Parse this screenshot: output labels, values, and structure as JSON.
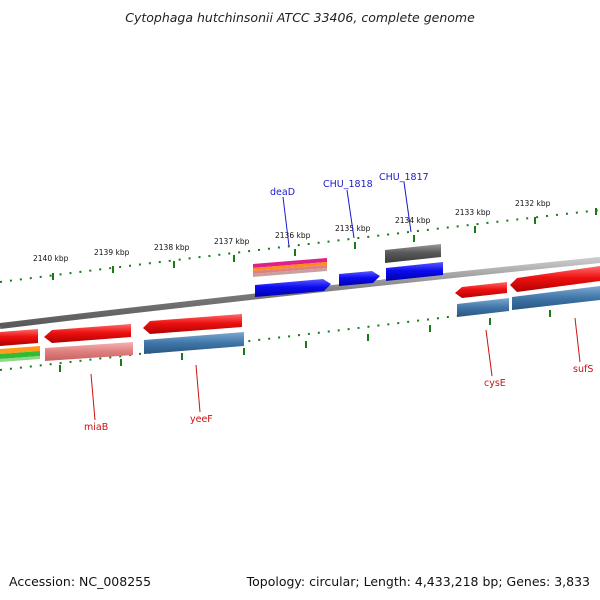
{
  "title": "Cytophaga hutchinsonii ATCC 33406, complete genome",
  "footer": {
    "accession": "Accession: NC_008255",
    "summary": "Topology: circular; Length: 4,433,218 bp; Genes: 3,833"
  },
  "colors": {
    "backbone": "#8a8a8a",
    "tick": "#1a7a1a",
    "forward_label": "#1a1acc",
    "reverse_label": "#cc1111",
    "gene_red": "#e81010",
    "gene_blue": "#1010ee",
    "gene_gray": "#666666",
    "gene_steel": "#3f76a8",
    "gene_salmon": "#e88b8b"
  },
  "scale": {
    "unit": "kbp",
    "ticks": [
      {
        "label": "2140 kbp"
      },
      {
        "label": "2139 kbp"
      },
      {
        "label": "2138 kbp"
      },
      {
        "label": "2137 kbp"
      },
      {
        "label": "2136 kbp"
      },
      {
        "label": "2135 kbp"
      },
      {
        "label": "2134 kbp"
      },
      {
        "label": "2133 kbp"
      },
      {
        "label": "2132 kbp"
      }
    ]
  },
  "gene_labels": {
    "forward": [
      "deaD",
      "CHU_1818",
      "CHU_1817"
    ],
    "reverse": [
      "miaB",
      "yeeF",
      "cysE",
      "sufS"
    ]
  }
}
